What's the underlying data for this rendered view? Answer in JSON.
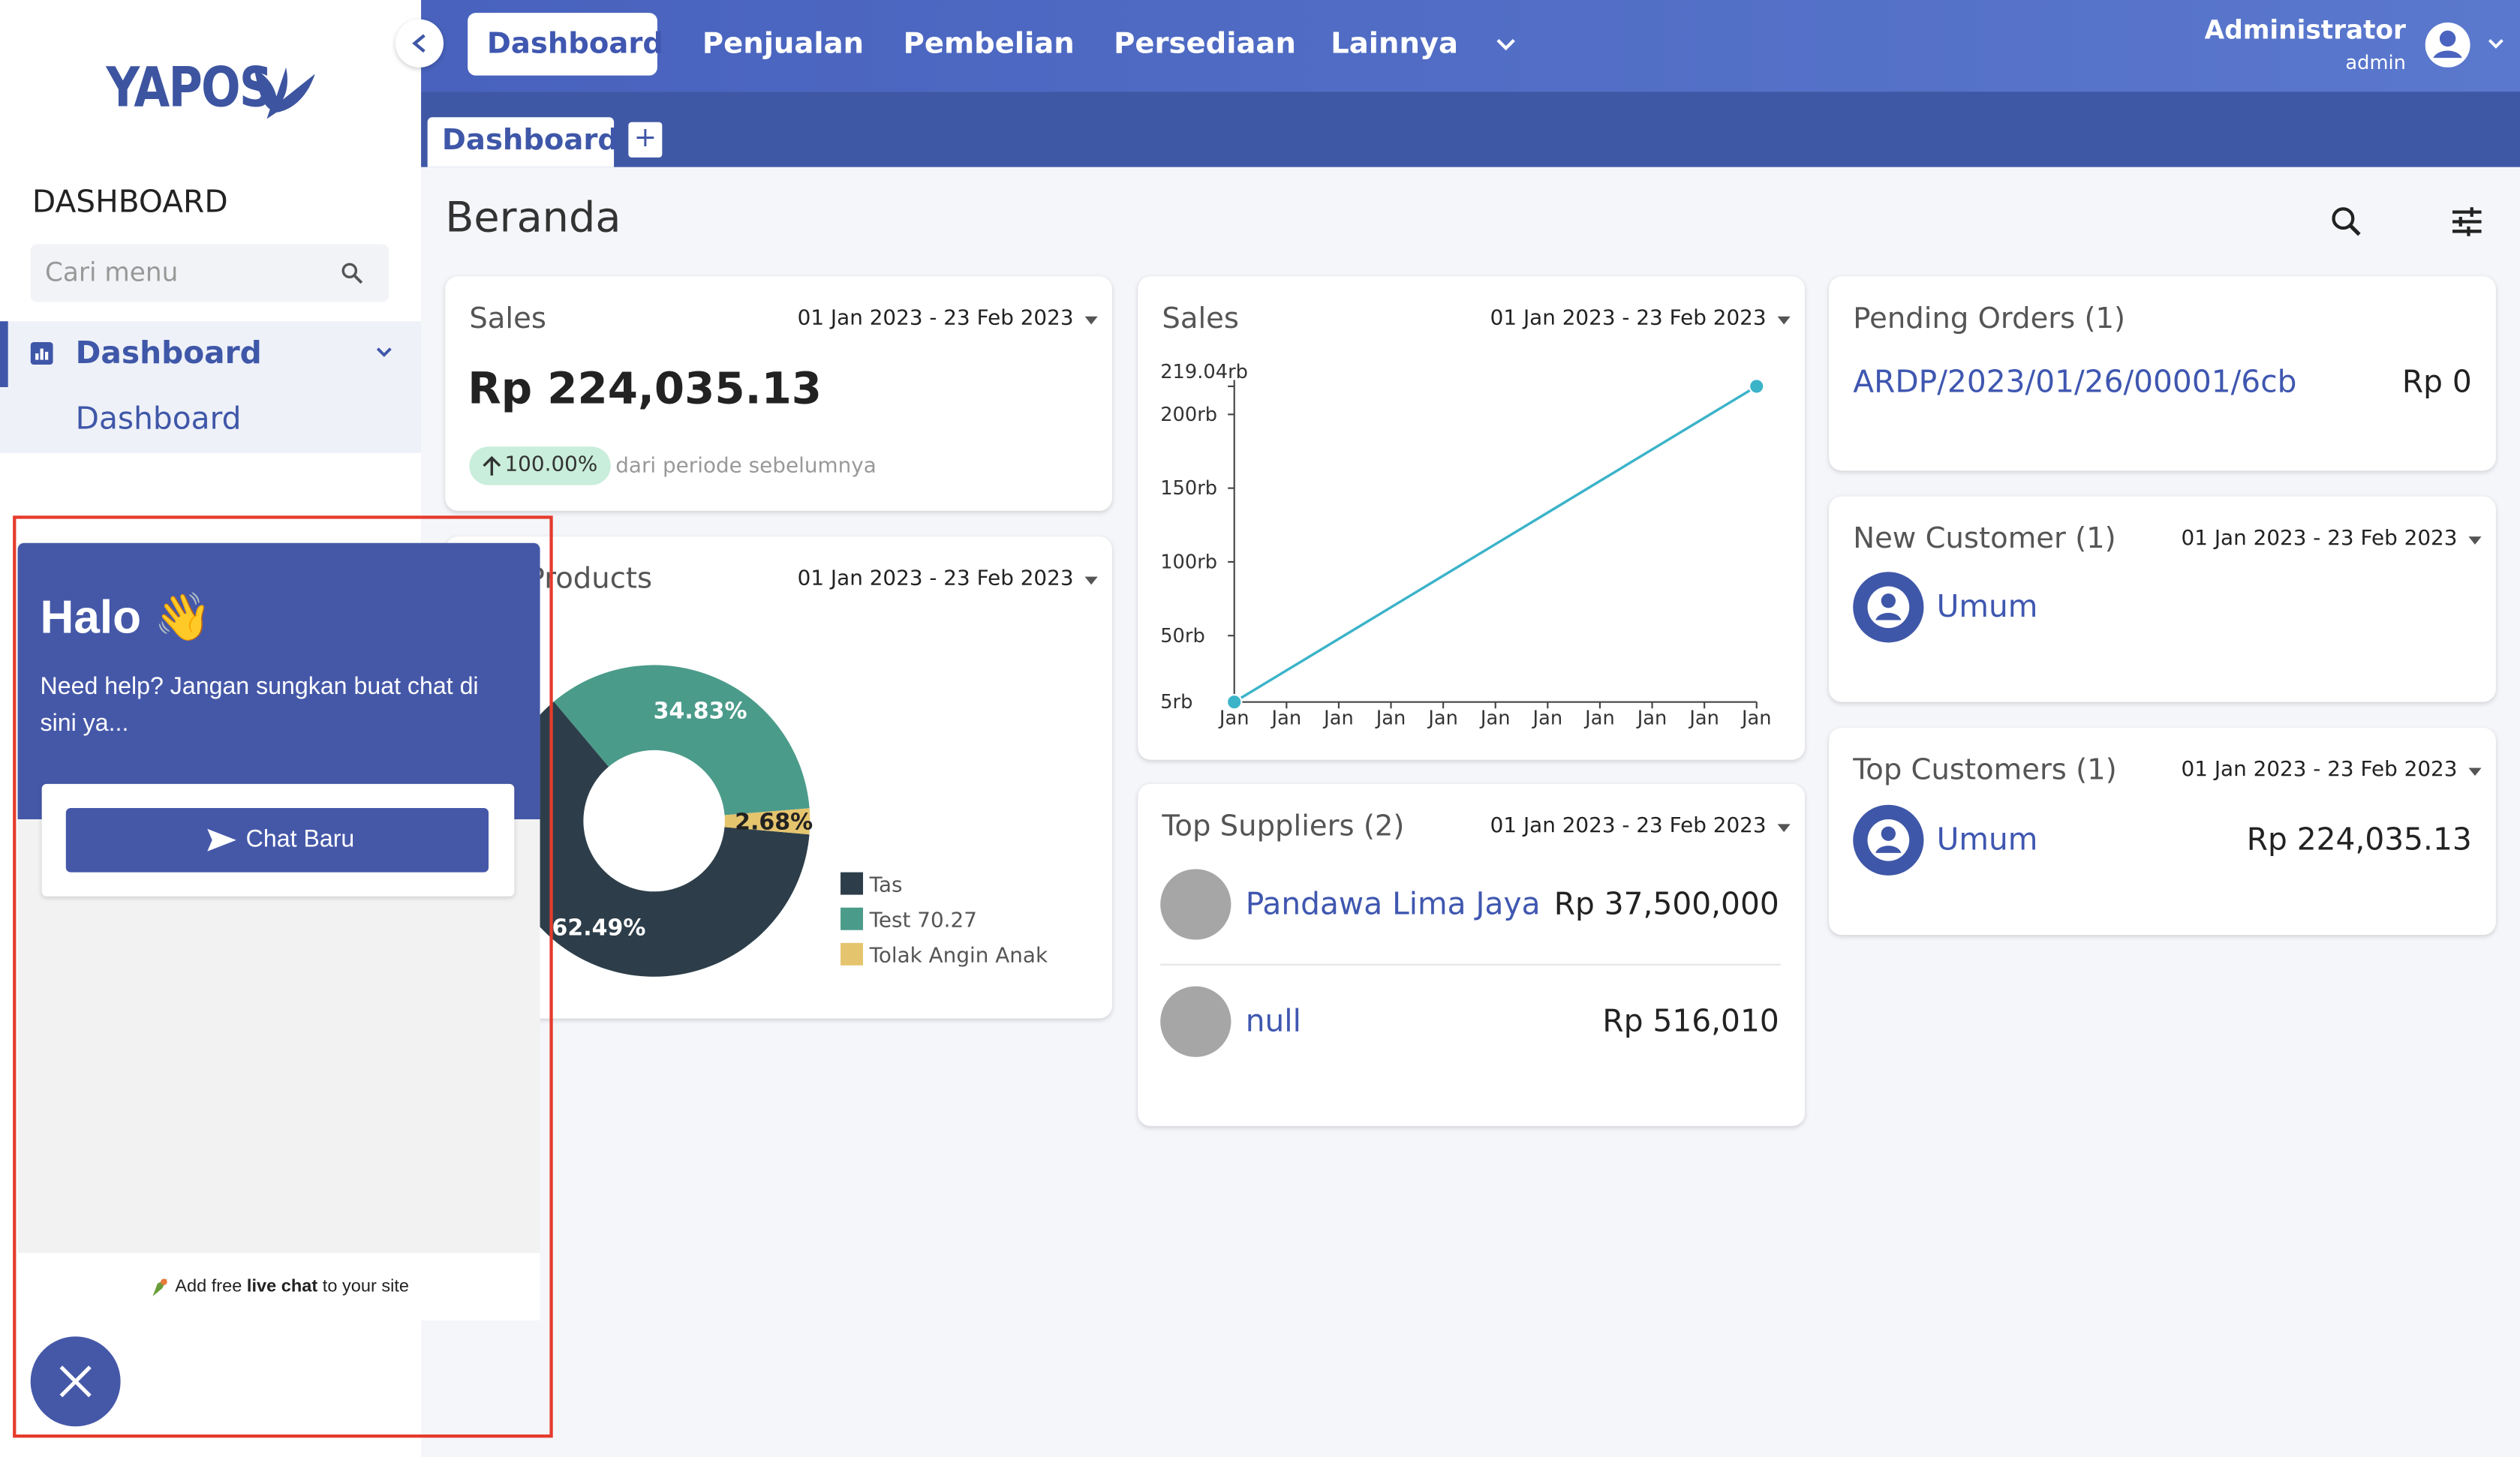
{
  "sidebar": {
    "brand": "YAPOS",
    "section": "DASHBOARD",
    "search_placeholder": "Cari menu",
    "menu": [
      {
        "label": "Dashboard",
        "children": [
          "Dashboard"
        ]
      }
    ]
  },
  "navbar": {
    "items": [
      "Dashboard",
      "Penjualan",
      "Pembelian",
      "Persediaan",
      "Lainnya"
    ],
    "user": {
      "name": "Administrator",
      "role": "admin"
    }
  },
  "tabs": [
    "Dashboard"
  ],
  "tab_add": "+",
  "page_title": "Beranda",
  "cards": {
    "sales_summary": {
      "title": "Sales",
      "date_range": "01 Jan 2023 - 23 Feb 2023",
      "amount": "Rp 224,035.13",
      "change": "100.00%",
      "change_note": "dari periode sebelumnya"
    },
    "top_suppliers": {
      "title": "Top Suppliers (2)",
      "date_range": "01 Jan 2023 - 23 Feb 2023",
      "rows": [
        {
          "name": "Pandawa Lima Jaya",
          "amount": "Rp 37,500,000"
        },
        {
          "name": "null",
          "amount": "Rp 516,010"
        }
      ]
    },
    "pending_orders": {
      "title": "Pending Orders (1)",
      "rows": [
        {
          "code": "ARDP/2023/01/26/00001/6cb",
          "amount": "Rp 0"
        }
      ]
    },
    "new_customer": {
      "title": "New Customer (1)",
      "date_range": "01 Jan 2023 - 23 Feb 2023",
      "rows": [
        {
          "name": "Umum"
        }
      ]
    },
    "top_customers": {
      "title": "Top Customers (1)",
      "date_range": "01 Jan 2023 - 23 Feb 2023",
      "rows": [
        {
          "name": "Umum",
          "amount": "Rp 224,035.13"
        }
      ]
    }
  },
  "chart_data": [
    {
      "type": "line",
      "title": "Sales",
      "date_range": "01 Jan 2023 - 23 Feb 2023",
      "categories": [
        "Jan",
        "Jan",
        "Jan",
        "Jan",
        "Jan",
        "Jan",
        "Jan",
        "Jan",
        "Jan",
        "Jan",
        "Jan"
      ],
      "values": [
        5,
        26.4,
        47.81,
        69.21,
        90.62,
        112.02,
        133.42,
        154.83,
        176.23,
        197.64,
        219.04
      ],
      "color": "#3bb3c9",
      "ylim": [
        5,
        219.04
      ],
      "yticks": [
        {
          "value": 5,
          "label": "5rb"
        },
        {
          "value": 50,
          "label": "50rb"
        },
        {
          "value": 100,
          "label": "100rb"
        },
        {
          "value": 150,
          "label": "150rb"
        },
        {
          "value": 200,
          "label": "200rb"
        },
        {
          "value": 219.04,
          "label": "219.04rb"
        }
      ]
    },
    {
      "type": "pie",
      "title": "Top Products",
      "date_range": "01 Jan 2023 - 23 Feb 2023",
      "categories": [
        "Tas",
        "Test 70.27",
        "Tolak Angin Anak"
      ],
      "values": [
        62.49,
        34.83,
        2.68
      ],
      "value_labels": [
        "62.49%",
        "34.83%",
        "2.68%"
      ],
      "colors": [
        "#2d3e4a",
        "#4b9b8a",
        "#e5c46e"
      ]
    }
  ],
  "chat_widget": {
    "greeting": "Halo 👋",
    "message": "Need help? Jangan sungkan buat chat di sini ya...",
    "button": "Chat Baru",
    "footer": {
      "prefix": "Add free",
      "bold": "live chat",
      "suffix": "to your site"
    }
  }
}
